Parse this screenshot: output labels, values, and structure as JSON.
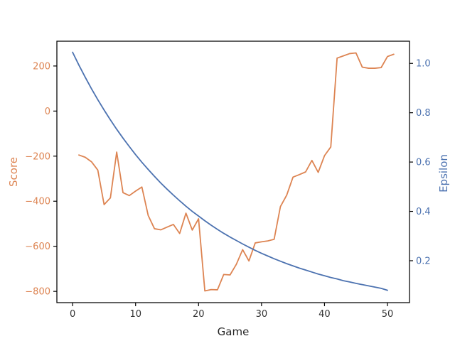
{
  "chart_data": {
    "type": "line",
    "title": "",
    "xlabel": "Game",
    "ylabel_left": "Score",
    "ylabel_right": "Epsilon",
    "xlim": [
      -2.5,
      53.5
    ],
    "ylim_left": [
      -850,
      310
    ],
    "ylim_right": [
      0.03,
      1.09
    ],
    "x_ticks": [
      0,
      10,
      20,
      30,
      40,
      50
    ],
    "x_tick_labels": [
      "0",
      "10",
      "20",
      "30",
      "40",
      "50"
    ],
    "y_left_ticks": [
      200,
      0,
      -200,
      -400,
      -600,
      -800
    ],
    "y_left_tick_labels": [
      "200",
      "0",
      "−200",
      "−400",
      "−600",
      "−800"
    ],
    "y_right_ticks": [
      1.0,
      0.8,
      0.6,
      0.4,
      0.2
    ],
    "y_right_tick_labels": [
      "1.0",
      "0.8",
      "0.6",
      "0.4",
      "0.2"
    ],
    "grid": false,
    "colors": {
      "score": "#dd8452",
      "epsilon": "#4c72b0",
      "axes": "#000000",
      "tick_text": "#333333"
    },
    "series": [
      {
        "axis": "left",
        "color": "#dd8452",
        "x": [
          1,
          2,
          3,
          4,
          5,
          6,
          7,
          8,
          9,
          10,
          11,
          12,
          13,
          14,
          15,
          16,
          17,
          18,
          19,
          20,
          21,
          22,
          23,
          24,
          25,
          26,
          27,
          28,
          29,
          30,
          31,
          32,
          33,
          34,
          35,
          36,
          37,
          38,
          39,
          40,
          41,
          42,
          43,
          44,
          45,
          46,
          47,
          48,
          49,
          50,
          51
        ],
        "y": [
          -195,
          -205,
          -225,
          -262,
          -415,
          -385,
          -182,
          -362,
          -375,
          -355,
          -337,
          -463,
          -522,
          -527,
          -515,
          -503,
          -543,
          -453,
          -528,
          -478,
          -798,
          -792,
          -793,
          -725,
          -727,
          -680,
          -615,
          -665,
          -585,
          -580,
          -576,
          -569,
          -424,
          -373,
          -293,
          -282,
          -270,
          -219,
          -272,
          -198,
          -159,
          235,
          245,
          255,
          258,
          195,
          190,
          190,
          193,
          242,
          252
        ]
      },
      {
        "axis": "right",
        "color": "#4c72b0",
        "x": [
          0,
          1,
          2,
          3,
          4,
          5,
          6,
          7,
          8,
          9,
          10,
          11,
          12,
          13,
          14,
          15,
          16,
          17,
          18,
          19,
          20,
          21,
          22,
          23,
          24,
          25,
          26,
          27,
          28,
          29,
          30,
          31,
          32,
          33,
          34,
          35,
          36,
          37,
          38,
          39,
          40,
          41,
          42,
          43,
          44,
          45,
          46,
          47,
          48,
          49,
          50
        ],
        "y": [
          1.045,
          0.993,
          0.944,
          0.897,
          0.853,
          0.811,
          0.771,
          0.733,
          0.697,
          0.663,
          0.63,
          0.599,
          0.57,
          0.542,
          0.515,
          0.49,
          0.466,
          0.443,
          0.421,
          0.4,
          0.381,
          0.362,
          0.344,
          0.327,
          0.311,
          0.296,
          0.282,
          0.268,
          0.255,
          0.242,
          0.23,
          0.219,
          0.208,
          0.198,
          0.188,
          0.179,
          0.17,
          0.162,
          0.154,
          0.146,
          0.139,
          0.132,
          0.126,
          0.119,
          0.114,
          0.108,
          0.103,
          0.098,
          0.093,
          0.088,
          0.08
        ]
      }
    ]
  }
}
